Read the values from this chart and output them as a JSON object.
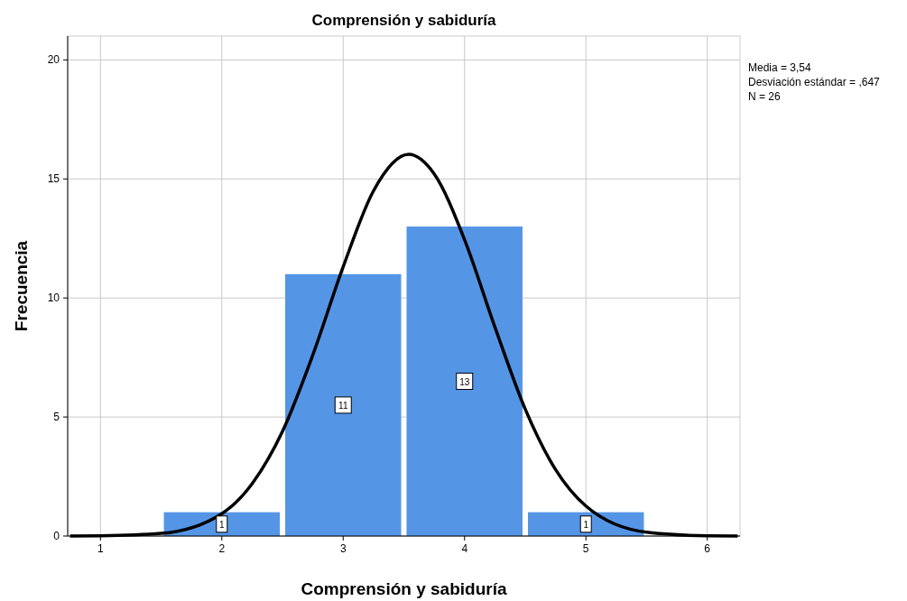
{
  "chart_data": {
    "type": "histogram",
    "title": "Comprensión y sabiduría",
    "xlabel": "Comprensión y sabiduría",
    "ylabel": "Frecuencia",
    "annotations": [
      "Media = 3,54",
      "Desviación estándar = ,647",
      "N = 26"
    ],
    "series": [
      {
        "type": "histogram",
        "bins": [
          1.5,
          2.5,
          3.5,
          4.5,
          5.5
        ],
        "values": [
          1,
          11,
          13,
          1
        ],
        "color": "#5595e6",
        "value_labels": [
          "1",
          "11",
          "13",
          "1"
        ]
      },
      {
        "type": "line",
        "color": "#000000",
        "x": [
          0.75,
          1,
          1.5,
          2,
          2.25,
          2.5,
          2.75,
          3,
          3.25,
          3.54,
          3.75,
          4,
          4.25,
          4.5,
          4.75,
          5,
          5.5,
          6,
          6.25
        ],
        "values": [
          0,
          0.01,
          0.11,
          0.94,
          2.2,
          4.4,
          7.61,
          11.31,
          14.5,
          16.03,
          15.21,
          12.45,
          8.78,
          5.33,
          2.79,
          1.26,
          0.16,
          0.01,
          0
        ]
      }
    ],
    "xlim": [
      0.73,
      6.27
    ],
    "ylim": [
      0,
      21
    ],
    "xticks": [
      1,
      2,
      3,
      4,
      5,
      6
    ],
    "yticks": [
      0,
      5,
      10,
      15,
      20
    ],
    "grid": true
  }
}
